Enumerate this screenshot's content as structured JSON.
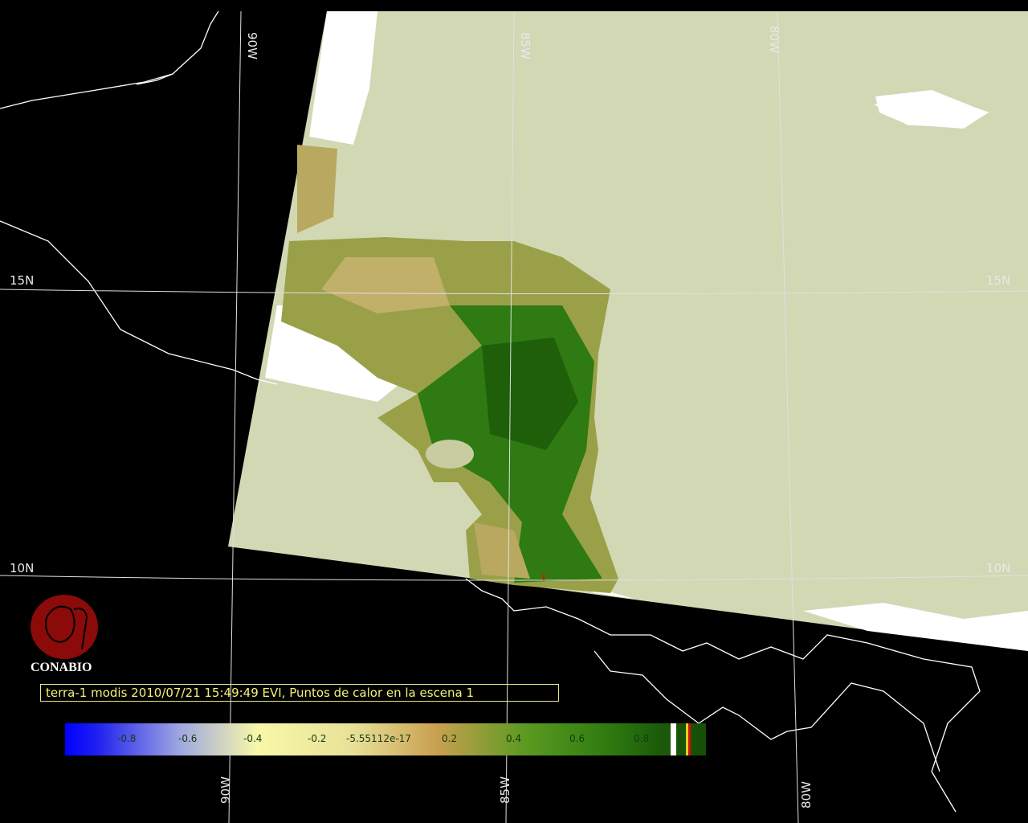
{
  "caption": "terra-1 modis 2010/07/21 15:49:49 EVI, Puntos de calor en la escena 1",
  "logo": {
    "text": "CONABIO",
    "color": "#8b0a0a"
  },
  "graticule": {
    "top_labels": [
      "90W",
      "85W",
      "80W"
    ],
    "bottom_labels": [
      "90W",
      "85W",
      "80W"
    ],
    "left_labels": [
      "15N",
      "10N"
    ],
    "right_labels": [
      "15N",
      "10N"
    ]
  },
  "colorbar": {
    "ticks": [
      "-0.8",
      "-0.6",
      "-0.4",
      "-0.2",
      "-5.55112e-17",
      "0.2",
      "0.4",
      "0.6",
      "0.8"
    ],
    "colors": {
      "low": "#0000ff",
      "mid": "#f8f8a8",
      "high": "#174d08"
    }
  },
  "colors": {
    "background": "#000000",
    "no_data_sea": "#d2d8b4",
    "cloud": "#ffffff",
    "coastline": "#ffffff",
    "grid": "#e0e0e0"
  }
}
